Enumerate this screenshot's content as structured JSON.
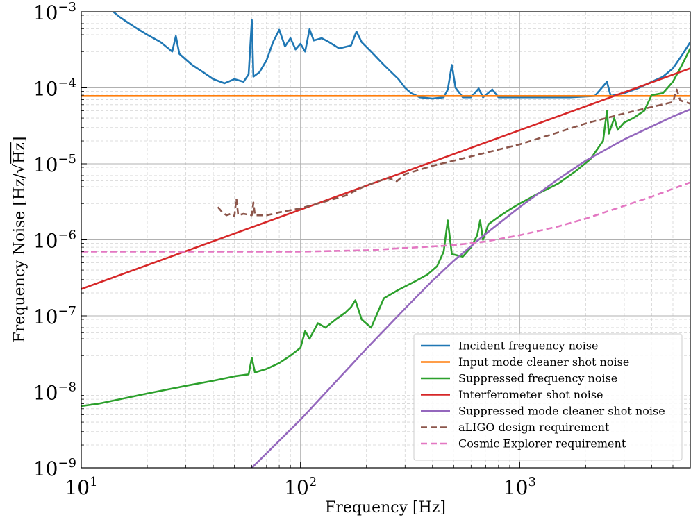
{
  "chart_data": {
    "type": "line",
    "xlabel": "Frequency [Hz]",
    "ylabel": "Frequency Noise [Hz/√Hz]",
    "ylabel_parts": {
      "prefix": "Frequency Noise [Hz/",
      "radicand": "Hz",
      "suffix": "]"
    },
    "xscale": "log",
    "yscale": "log",
    "xlim": [
      10,
      6000
    ],
    "ylim": [
      1e-09,
      0.001
    ],
    "grid": true,
    "legend_position": "lower-right",
    "x_ticks": [
      {
        "value": 10,
        "base": "10",
        "exp": "1"
      },
      {
        "value": 100,
        "base": "10",
        "exp": "2"
      },
      {
        "value": 1000,
        "base": "10",
        "exp": "3"
      }
    ],
    "y_ticks": [
      {
        "value": 1e-09,
        "base": "10",
        "exp": "−9"
      },
      {
        "value": 1e-08,
        "base": "10",
        "exp": "−8"
      },
      {
        "value": 1e-07,
        "base": "10",
        "exp": "−7"
      },
      {
        "value": 1e-06,
        "base": "10",
        "exp": "−6"
      },
      {
        "value": 1e-05,
        "base": "10",
        "exp": "−5"
      },
      {
        "value": 0.0001,
        "base": "10",
        "exp": "−4"
      },
      {
        "value": 0.001,
        "base": "10",
        "exp": "−3"
      }
    ],
    "series": [
      {
        "name": "Incident frequency noise",
        "color": "#1f77b4",
        "dash": "solid",
        "points": [
          [
            14,
            0.001
          ],
          [
            15,
            0.00085
          ],
          [
            16,
            0.00075
          ],
          [
            18,
            0.0006
          ],
          [
            20,
            0.0005
          ],
          [
            23,
            0.0004
          ],
          [
            26,
            0.0003
          ],
          [
            27,
            0.00048
          ],
          [
            28,
            0.00028
          ],
          [
            32,
            0.0002
          ],
          [
            36,
            0.00016
          ],
          [
            40,
            0.00013
          ],
          [
            45,
            0.000115
          ],
          [
            50,
            0.00013
          ],
          [
            55,
            0.00012
          ],
          [
            58,
            0.00015
          ],
          [
            60,
            0.00078
          ],
          [
            61,
            0.00014
          ],
          [
            65,
            0.00016
          ],
          [
            70,
            0.00023
          ],
          [
            75,
            0.0004
          ],
          [
            80,
            0.00058
          ],
          [
            85,
            0.00035
          ],
          [
            90,
            0.00045
          ],
          [
            95,
            0.00032
          ],
          [
            100,
            0.00038
          ],
          [
            105,
            0.0003
          ],
          [
            110,
            0.00059
          ],
          [
            115,
            0.00042
          ],
          [
            125,
            0.00045
          ],
          [
            135,
            0.0004
          ],
          [
            150,
            0.00033
          ],
          [
            170,
            0.00036
          ],
          [
            180,
            0.00055
          ],
          [
            190,
            0.0004
          ],
          [
            210,
            0.0003
          ],
          [
            240,
            0.0002
          ],
          [
            280,
            0.00013
          ],
          [
            300,
            0.0001
          ],
          [
            320,
            8.5e-05
          ],
          [
            350,
            7.5e-05
          ],
          [
            400,
            7.2e-05
          ],
          [
            450,
            7.5e-05
          ],
          [
            470,
            9.5e-05
          ],
          [
            490,
            0.0002
          ],
          [
            510,
            0.0001
          ],
          [
            550,
            7.5e-05
          ],
          [
            600,
            7.5e-05
          ],
          [
            650,
            9.8e-05
          ],
          [
            680,
            7.5e-05
          ],
          [
            750,
            9.5e-05
          ],
          [
            800,
            7.5e-05
          ],
          [
            1000,
            7.5e-05
          ],
          [
            1300,
            7.5e-05
          ],
          [
            1700,
            7.5e-05
          ],
          [
            2200,
            7.8e-05
          ],
          [
            2500,
            0.00012
          ],
          [
            2600,
            7.8e-05
          ],
          [
            3000,
            8.5e-05
          ],
          [
            3500,
            0.0001
          ],
          [
            4000,
            0.00012
          ],
          [
            4500,
            0.00014
          ],
          [
            5000,
            0.00018
          ],
          [
            5500,
            0.00027
          ],
          [
            6000,
            0.0004
          ]
        ]
      },
      {
        "name": "Input mode cleaner shot noise",
        "color": "#ff7f0e",
        "dash": "solid",
        "points": [
          [
            10,
            7.8e-05
          ],
          [
            6000,
            7.8e-05
          ]
        ]
      },
      {
        "name": "Suppressed frequency noise",
        "color": "#2ca02c",
        "dash": "solid",
        "points": [
          [
            10,
            6.5e-09
          ],
          [
            12,
            7e-09
          ],
          [
            15,
            8e-09
          ],
          [
            20,
            9.5e-09
          ],
          [
            30,
            1.2e-08
          ],
          [
            40,
            1.4e-08
          ],
          [
            50,
            1.6e-08
          ],
          [
            58,
            1.7e-08
          ],
          [
            60,
            2.8e-08
          ],
          [
            62,
            1.8e-08
          ],
          [
            70,
            2e-08
          ],
          [
            80,
            2.4e-08
          ],
          [
            90,
            3e-08
          ],
          [
            100,
            3.8e-08
          ],
          [
            105,
            6.3e-08
          ],
          [
            110,
            5e-08
          ],
          [
            120,
            8e-08
          ],
          [
            130,
            7e-08
          ],
          [
            145,
            9e-08
          ],
          [
            160,
            1.1e-07
          ],
          [
            170,
            1.3e-07
          ],
          [
            178,
            1.6e-07
          ],
          [
            190,
            9e-08
          ],
          [
            210,
            7e-08
          ],
          [
            240,
            1.7e-07
          ],
          [
            280,
            2.2e-07
          ],
          [
            330,
            2.8e-07
          ],
          [
            380,
            3.5e-07
          ],
          [
            420,
            4.5e-07
          ],
          [
            450,
            7e-07
          ],
          [
            470,
            1.8e-06
          ],
          [
            490,
            6.5e-07
          ],
          [
            550,
            6e-07
          ],
          [
            600,
            8e-07
          ],
          [
            640,
            1.15e-06
          ],
          [
            660,
            1.8e-06
          ],
          [
            680,
            1e-06
          ],
          [
            720,
            1.6e-06
          ],
          [
            800,
            2e-06
          ],
          [
            900,
            2.5e-06
          ],
          [
            1000,
            3e-06
          ],
          [
            1200,
            4e-06
          ],
          [
            1500,
            5.5e-06
          ],
          [
            1800,
            8e-06
          ],
          [
            2100,
            1.15e-05
          ],
          [
            2400,
            2e-05
          ],
          [
            2500,
            5e-05
          ],
          [
            2550,
            2.5e-05
          ],
          [
            2700,
            4e-05
          ],
          [
            2800,
            2.8e-05
          ],
          [
            3000,
            3.5e-05
          ],
          [
            3300,
            4e-05
          ],
          [
            3700,
            5e-05
          ],
          [
            4000,
            8e-05
          ],
          [
            4500,
            8.5e-05
          ],
          [
            5000,
            0.00012
          ],
          [
            5500,
            0.0002
          ],
          [
            6000,
            0.00033
          ]
        ]
      },
      {
        "name": "Interferometer shot noise",
        "color": "#d62728",
        "dash": "solid",
        "points": [
          [
            10,
            2.25e-07
          ],
          [
            6000,
            0.00018
          ]
        ]
      },
      {
        "name": "Suppressed mode cleaner shot noise",
        "color": "#9467bd",
        "dash": "solid",
        "points": [
          [
            60,
            1e-09
          ],
          [
            100,
            4.3e-09
          ],
          [
            200,
            3.7e-08
          ],
          [
            300,
            1.25e-07
          ],
          [
            400,
            2.9e-07
          ],
          [
            500,
            5.3e-07
          ],
          [
            700,
            1.2e-06
          ],
          [
            1000,
            2.7e-06
          ],
          [
            1500,
            6.3e-06
          ],
          [
            2000,
            1.1e-05
          ],
          [
            3000,
            2.1e-05
          ],
          [
            4000,
            3.1e-05
          ],
          [
            5000,
            4.2e-05
          ],
          [
            6000,
            5.2e-05
          ]
        ]
      },
      {
        "name": "aLIGO design requirement",
        "color": "#8c564b",
        "dash": "dashed",
        "points": [
          [
            42,
            2.7e-06
          ],
          [
            44,
            2.3e-06
          ],
          [
            46,
            2.1e-06
          ],
          [
            48,
            2.2e-06
          ],
          [
            50,
            2.05e-06
          ],
          [
            51,
            3.5e-06
          ],
          [
            52,
            2.1e-06
          ],
          [
            55,
            2.2e-06
          ],
          [
            60,
            2.1e-06
          ],
          [
            61,
            3.1e-06
          ],
          [
            62,
            2.1e-06
          ],
          [
            70,
            2.1e-06
          ],
          [
            80,
            2.3e-06
          ],
          [
            100,
            2.6e-06
          ],
          [
            130,
            3.2e-06
          ],
          [
            160,
            3.8e-06
          ],
          [
            180,
            4.5e-06
          ],
          [
            200,
            5.2e-06
          ],
          [
            250,
            6.5e-06
          ],
          [
            275,
            5.9e-06
          ],
          [
            300,
            7.3e-06
          ],
          [
            400,
            9.4e-06
          ],
          [
            500,
            1.1e-05
          ],
          [
            700,
            1.4e-05
          ],
          [
            1000,
            1.8e-05
          ],
          [
            1500,
            2.6e-05
          ],
          [
            2000,
            3.4e-05
          ],
          [
            3000,
            4.6e-05
          ],
          [
            4000,
            5.6e-05
          ],
          [
            5000,
            6.5e-05
          ],
          [
            5200,
            9.5e-05
          ],
          [
            5400,
            6.8e-05
          ],
          [
            6000,
            6.2e-05
          ]
        ]
      },
      {
        "name": "Cosmic Explorer requirement",
        "color": "#e377c2",
        "dash": "dashed",
        "points": [
          [
            10,
            7e-07
          ],
          [
            50,
            7e-07
          ],
          [
            100,
            7e-07
          ],
          [
            200,
            7.3e-07
          ],
          [
            300,
            7.8e-07
          ],
          [
            500,
            8.5e-07
          ],
          [
            700,
            9.5e-07
          ],
          [
            1000,
            1.15e-06
          ],
          [
            1500,
            1.5e-06
          ],
          [
            2000,
            1.9e-06
          ],
          [
            3000,
            2.8e-06
          ],
          [
            4000,
            3.7e-06
          ],
          [
            5000,
            4.7e-06
          ],
          [
            6000,
            5.7e-06
          ]
        ]
      }
    ]
  }
}
